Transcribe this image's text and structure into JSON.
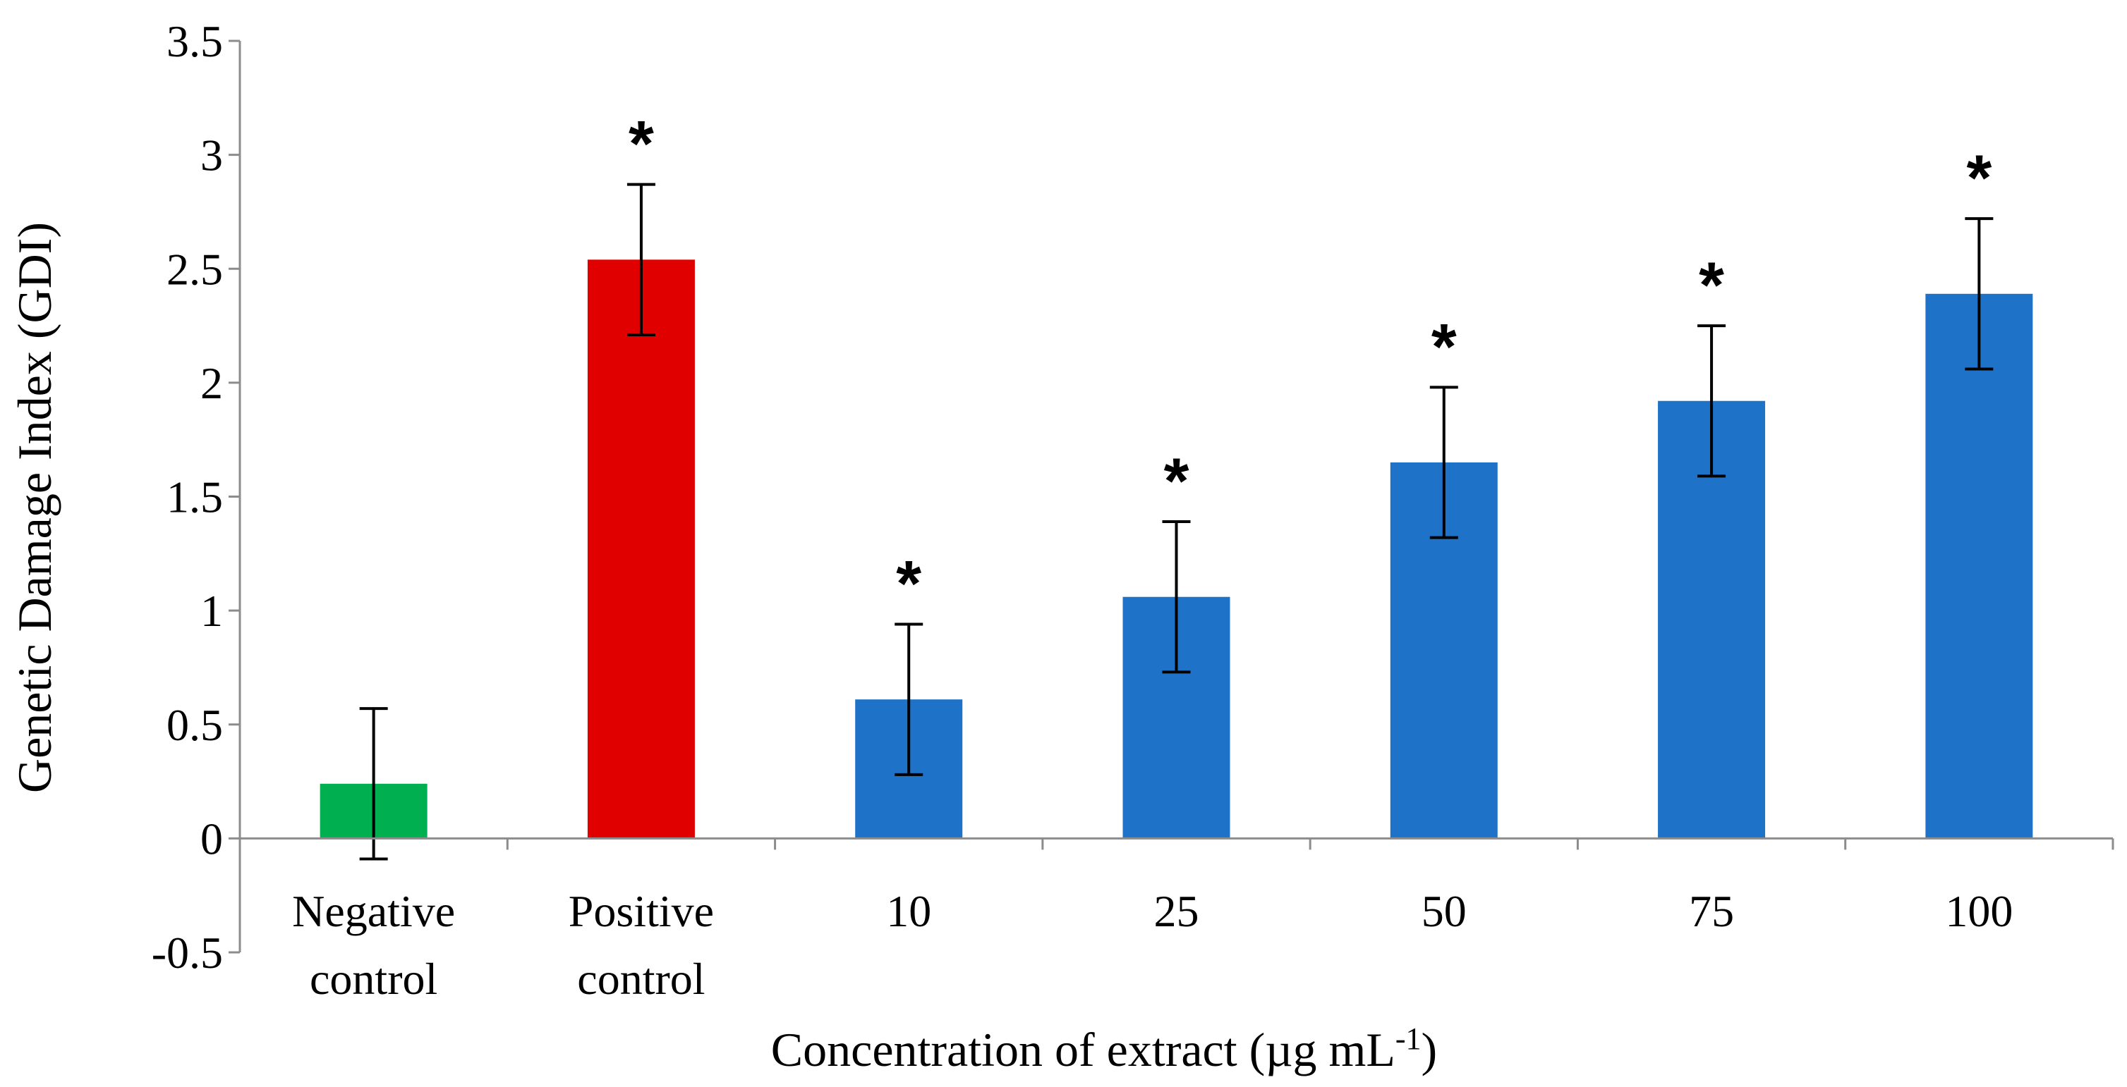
{
  "chart_data": {
    "type": "bar",
    "title": "",
    "xlabel": "Concentration of extract (µg mL",
    "xlabel_superscript": "-1",
    "xlabel_suffix": ")",
    "ylabel": "Genetic Damage Index (GDI)",
    "ylim": [
      -0.5,
      3.5
    ],
    "yticks": [
      3.5,
      3,
      2.5,
      2,
      1.5,
      1,
      0.5,
      0,
      -0.5
    ],
    "ytick_labels": [
      "3.5",
      "3",
      "2.5",
      "2",
      "1.5",
      "1",
      "0.5",
      "0",
      "-0.5"
    ],
    "grid": false,
    "categories": [
      [
        "Negative",
        "control"
      ],
      [
        "Positive",
        "control"
      ],
      [
        "10"
      ],
      [
        "25"
      ],
      [
        "50"
      ],
      [
        "75"
      ],
      [
        "100"
      ]
    ],
    "values": [
      0.24,
      2.54,
      0.61,
      1.06,
      1.65,
      1.92,
      2.39
    ],
    "errors": [
      0.33,
      0.33,
      0.33,
      0.33,
      0.33,
      0.33,
      0.33
    ],
    "colors": [
      "#00b050",
      "#e00000",
      "#1e73c8",
      "#1e73c8",
      "#1e73c8",
      "#1e73c8",
      "#1e73c8"
    ],
    "significance": [
      "",
      "*",
      "*",
      "*",
      "*",
      "*",
      "*"
    ]
  }
}
